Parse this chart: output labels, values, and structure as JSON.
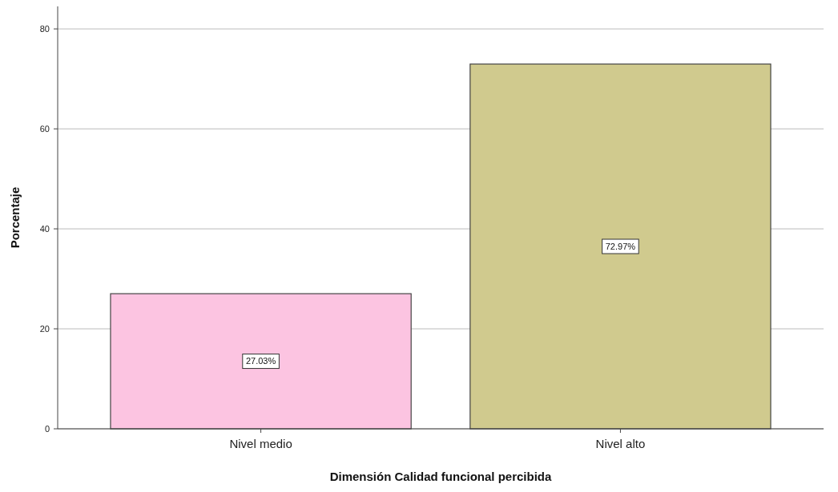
{
  "chart_data": {
    "type": "bar",
    "xlabel": "Dimensión Calidad funcional percibida",
    "ylabel": "Porcentaje",
    "categories": [
      "Nivel medio",
      "Nivel alto"
    ],
    "values": [
      27.03,
      72.97
    ],
    "colors": [
      "#fcc4e1",
      "#d0ca8e"
    ],
    "value_labels": [
      "27.03%",
      "72.97%"
    ],
    "ylim": [
      0,
      84.5
    ],
    "yticks": [
      0,
      20,
      40,
      60,
      80
    ],
    "grid": "y"
  }
}
